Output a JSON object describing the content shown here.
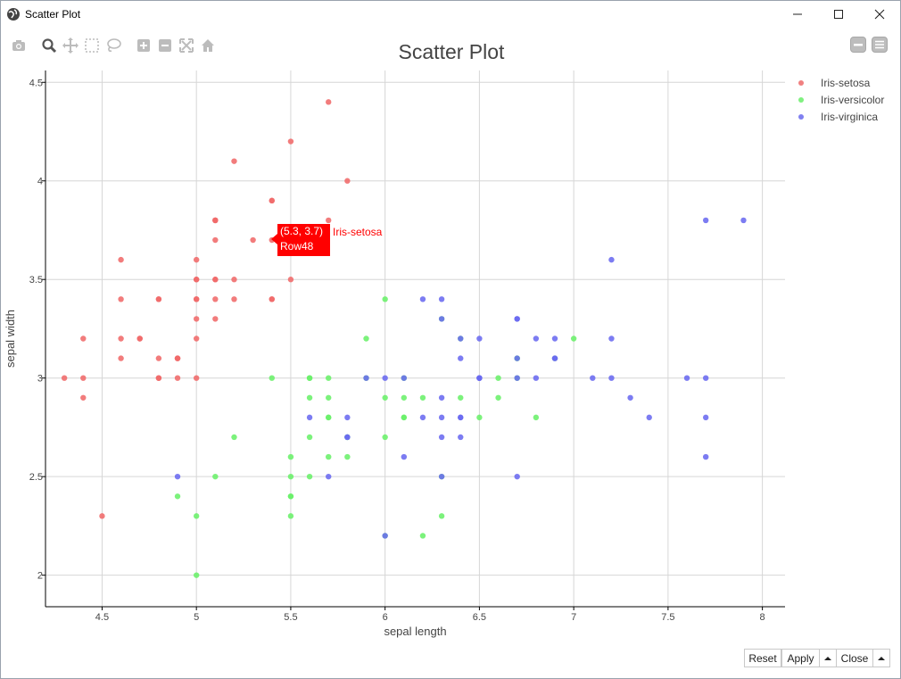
{
  "window": {
    "title": "Scatter Plot"
  },
  "plot": {
    "title": "Scatter Plot"
  },
  "toolbar": {
    "icons": [
      "camera-icon",
      "zoom-icon",
      "pan-icon",
      "box-select-icon",
      "lasso-select-icon",
      "zoom-in-icon",
      "zoom-out-icon",
      "autoscale-icon",
      "reset-axes-icon"
    ]
  },
  "tooltip": {
    "coords": "(5.3, 3.7)",
    "row": "Row48",
    "name": "Iris-setosa"
  },
  "buttons": {
    "reset": "Reset",
    "apply": "Apply",
    "close": "Close"
  },
  "legend": [
    {
      "label": "Iris-setosa",
      "color": "#f08080"
    },
    {
      "label": "Iris-versicolor",
      "color": "#80f080"
    },
    {
      "label": "Iris-virginica",
      "color": "#8080f0"
    }
  ],
  "chart_data": {
    "type": "scatter",
    "title": "Scatter Plot",
    "xlabel": "sepal length",
    "ylabel": "sepal width",
    "xlim": [
      4.2,
      8.12
    ],
    "ylim": [
      1.84,
      4.56
    ],
    "xticks": [
      "4.5",
      "5",
      "5.5",
      "6",
      "6.5",
      "7",
      "7.5",
      "8"
    ],
    "xtick_values": [
      4.5,
      5,
      5.5,
      6,
      6.5,
      7,
      7.5,
      8
    ],
    "yticks": [
      "2",
      "2.5",
      "3",
      "3.5",
      "4",
      "4.5"
    ],
    "ytick_values": [
      2,
      2.5,
      3,
      3.5,
      4,
      4.5
    ],
    "grid": true,
    "legend_position": "top-right",
    "series": [
      {
        "name": "Iris-setosa",
        "color": "#f06a6a",
        "points": [
          [
            5.1,
            3.5
          ],
          [
            4.9,
            3.0
          ],
          [
            4.7,
            3.2
          ],
          [
            4.6,
            3.1
          ],
          [
            5.0,
            3.6
          ],
          [
            5.4,
            3.9
          ],
          [
            4.6,
            3.4
          ],
          [
            5.0,
            3.4
          ],
          [
            4.4,
            2.9
          ],
          [
            4.9,
            3.1
          ],
          [
            5.4,
            3.7
          ],
          [
            4.8,
            3.4
          ],
          [
            4.8,
            3.0
          ],
          [
            4.3,
            3.0
          ],
          [
            5.8,
            4.0
          ],
          [
            5.7,
            4.4
          ],
          [
            5.4,
            3.9
          ],
          [
            5.1,
            3.5
          ],
          [
            5.7,
            3.8
          ],
          [
            5.1,
            3.8
          ],
          [
            5.4,
            3.4
          ],
          [
            5.1,
            3.7
          ],
          [
            4.6,
            3.6
          ],
          [
            5.1,
            3.3
          ],
          [
            4.8,
            3.4
          ],
          [
            5.0,
            3.0
          ],
          [
            5.0,
            3.4
          ],
          [
            5.2,
            3.5
          ],
          [
            5.2,
            3.4
          ],
          [
            4.7,
            3.2
          ],
          [
            4.8,
            3.1
          ],
          [
            5.4,
            3.4
          ],
          [
            5.2,
            4.1
          ],
          [
            5.5,
            4.2
          ],
          [
            4.9,
            3.1
          ],
          [
            5.0,
            3.2
          ],
          [
            5.5,
            3.5
          ],
          [
            4.9,
            3.1
          ],
          [
            4.4,
            3.0
          ],
          [
            5.1,
            3.4
          ],
          [
            5.0,
            3.5
          ],
          [
            4.5,
            2.3
          ],
          [
            4.4,
            3.2
          ],
          [
            5.0,
            3.5
          ],
          [
            5.1,
            3.8
          ],
          [
            4.8,
            3.0
          ],
          [
            5.1,
            3.8
          ],
          [
            4.6,
            3.2
          ],
          [
            5.3,
            3.7
          ],
          [
            5.0,
            3.3
          ]
        ]
      },
      {
        "name": "Iris-versicolor",
        "color": "#6af06a",
        "points": [
          [
            7.0,
            3.2
          ],
          [
            6.4,
            3.2
          ],
          [
            6.9,
            3.1
          ],
          [
            5.5,
            2.3
          ],
          [
            6.5,
            2.8
          ],
          [
            5.7,
            2.8
          ],
          [
            6.3,
            3.3
          ],
          [
            4.9,
            2.4
          ],
          [
            6.6,
            2.9
          ],
          [
            5.2,
            2.7
          ],
          [
            5.0,
            2.0
          ],
          [
            5.9,
            3.0
          ],
          [
            6.0,
            2.2
          ],
          [
            6.1,
            2.9
          ],
          [
            5.6,
            2.9
          ],
          [
            6.7,
            3.1
          ],
          [
            5.6,
            3.0
          ],
          [
            5.8,
            2.7
          ],
          [
            6.2,
            2.2
          ],
          [
            5.6,
            2.5
          ],
          [
            5.9,
            3.2
          ],
          [
            6.1,
            2.8
          ],
          [
            6.3,
            2.5
          ],
          [
            6.1,
            2.8
          ],
          [
            6.4,
            2.9
          ],
          [
            6.6,
            3.0
          ],
          [
            6.8,
            2.8
          ],
          [
            6.7,
            3.0
          ],
          [
            6.0,
            2.9
          ],
          [
            5.7,
            2.6
          ],
          [
            5.5,
            2.4
          ],
          [
            5.5,
            2.4
          ],
          [
            5.8,
            2.7
          ],
          [
            6.0,
            2.7
          ],
          [
            5.4,
            3.0
          ],
          [
            6.0,
            3.4
          ],
          [
            6.7,
            3.1
          ],
          [
            6.3,
            2.3
          ],
          [
            5.6,
            3.0
          ],
          [
            5.5,
            2.5
          ],
          [
            5.5,
            2.6
          ],
          [
            6.1,
            3.0
          ],
          [
            5.8,
            2.6
          ],
          [
            5.0,
            2.3
          ],
          [
            5.6,
            2.7
          ],
          [
            5.7,
            3.0
          ],
          [
            5.7,
            2.9
          ],
          [
            6.2,
            2.9
          ],
          [
            5.1,
            2.5
          ],
          [
            5.7,
            2.8
          ]
        ]
      },
      {
        "name": "Iris-virginica",
        "color": "#6a6af0",
        "points": [
          [
            6.3,
            3.3
          ],
          [
            5.8,
            2.7
          ],
          [
            7.1,
            3.0
          ],
          [
            6.3,
            2.9
          ],
          [
            6.5,
            3.0
          ],
          [
            7.6,
            3.0
          ],
          [
            4.9,
            2.5
          ],
          [
            7.3,
            2.9
          ],
          [
            6.7,
            2.5
          ],
          [
            7.2,
            3.6
          ],
          [
            6.5,
            3.2
          ],
          [
            6.4,
            2.7
          ],
          [
            6.8,
            3.0
          ],
          [
            5.7,
            2.5
          ],
          [
            5.8,
            2.8
          ],
          [
            6.4,
            3.2
          ],
          [
            6.5,
            3.0
          ],
          [
            7.7,
            3.8
          ],
          [
            7.7,
            2.6
          ],
          [
            6.0,
            2.2
          ],
          [
            6.9,
            3.2
          ],
          [
            5.6,
            2.8
          ],
          [
            7.7,
            2.8
          ],
          [
            6.3,
            2.7
          ],
          [
            6.7,
            3.3
          ],
          [
            7.2,
            3.2
          ],
          [
            6.2,
            2.8
          ],
          [
            6.1,
            3.0
          ],
          [
            6.4,
            2.8
          ],
          [
            7.2,
            3.0
          ],
          [
            7.4,
            2.8
          ],
          [
            7.9,
            3.8
          ],
          [
            6.4,
            2.8
          ],
          [
            6.3,
            2.8
          ],
          [
            6.1,
            2.6
          ],
          [
            7.7,
            3.0
          ],
          [
            6.3,
            3.4
          ],
          [
            6.4,
            3.1
          ],
          [
            6.0,
            3.0
          ],
          [
            6.9,
            3.1
          ],
          [
            6.7,
            3.1
          ],
          [
            6.9,
            3.1
          ],
          [
            5.8,
            2.7
          ],
          [
            6.8,
            3.2
          ],
          [
            6.7,
            3.3
          ],
          [
            6.7,
            3.0
          ],
          [
            6.3,
            2.5
          ],
          [
            6.5,
            3.0
          ],
          [
            6.2,
            3.4
          ],
          [
            5.9,
            3.0
          ]
        ]
      }
    ]
  }
}
